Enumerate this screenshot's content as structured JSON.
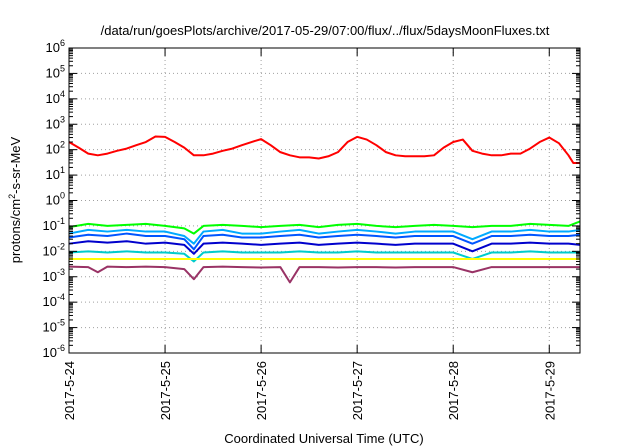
{
  "chart_data": {
    "type": "line",
    "title": "/data/run/goesPlots/archive/2017-05-29/07:00/flux/../flux/5daysMoonFluxes.txt",
    "xlabel": "Coordinated Universal Time (UTC)",
    "ylabel": "protons/cm²-s-sr-MeV",
    "ylabel_base": "protons/cm",
    "ylabel_sup": "2",
    "ylabel_rest": "-s-sr-MeV",
    "yscale": "log",
    "ylim_exp": [
      -6,
      6
    ],
    "ytick_base": "10",
    "ytick_exponents": [
      "-6",
      "-5",
      "-4",
      "-3",
      "-2",
      "-1",
      "0",
      "1",
      "2",
      "3",
      "4",
      "5",
      "6"
    ],
    "x_day_start": "2017-5-24",
    "xlim_days": [
      0,
      5.32
    ],
    "xtick_days": [
      0,
      1,
      2,
      3,
      4,
      5
    ],
    "xtick_labels": [
      "2017-5-24",
      "2017-5-25",
      "2017-5-26",
      "2017-5-27",
      "2017-5-28",
      "2017-5-29"
    ],
    "grid": true,
    "series": [
      {
        "color": "#ff0000",
        "values": [
          [
            0,
            200
          ],
          [
            0.1,
            120
          ],
          [
            0.2,
            70
          ],
          [
            0.3,
            60
          ],
          [
            0.4,
            70
          ],
          [
            0.5,
            90
          ],
          [
            0.6,
            110
          ],
          [
            0.7,
            150
          ],
          [
            0.8,
            200
          ],
          [
            0.9,
            330
          ],
          [
            1.0,
            320
          ],
          [
            1.1,
            200
          ],
          [
            1.2,
            120
          ],
          [
            1.3,
            60
          ],
          [
            1.4,
            60
          ],
          [
            1.5,
            70
          ],
          [
            1.6,
            90
          ],
          [
            1.7,
            110
          ],
          [
            1.8,
            150
          ],
          [
            1.9,
            200
          ],
          [
            2.0,
            260
          ],
          [
            2.1,
            150
          ],
          [
            2.2,
            80
          ],
          [
            2.3,
            60
          ],
          [
            2.4,
            50
          ],
          [
            2.5,
            50
          ],
          [
            2.6,
            45
          ],
          [
            2.7,
            55
          ],
          [
            2.8,
            80
          ],
          [
            2.9,
            200
          ],
          [
            3.0,
            320
          ],
          [
            3.1,
            250
          ],
          [
            3.2,
            150
          ],
          [
            3.3,
            80
          ],
          [
            3.4,
            60
          ],
          [
            3.5,
            55
          ],
          [
            3.6,
            55
          ],
          [
            3.7,
            55
          ],
          [
            3.8,
            60
          ],
          [
            3.9,
            120
          ],
          [
            4.0,
            200
          ],
          [
            4.1,
            250
          ],
          [
            4.2,
            90
          ],
          [
            4.3,
            70
          ],
          [
            4.4,
            60
          ],
          [
            4.5,
            60
          ],
          [
            4.6,
            70
          ],
          [
            4.7,
            70
          ],
          [
            4.8,
            110
          ],
          [
            4.9,
            200
          ],
          [
            5.0,
            300
          ],
          [
            5.1,
            180
          ],
          [
            5.2,
            60
          ],
          [
            5.25,
            30
          ],
          [
            5.32,
            30
          ]
        ]
      },
      {
        "color": "#00ff00",
        "values": [
          [
            0,
            0.09
          ],
          [
            0.2,
            0.12
          ],
          [
            0.4,
            0.1
          ],
          [
            0.6,
            0.11
          ],
          [
            0.8,
            0.12
          ],
          [
            1.0,
            0.1
          ],
          [
            1.2,
            0.08
          ],
          [
            1.3,
            0.05
          ],
          [
            1.4,
            0.1
          ],
          [
            1.6,
            0.11
          ],
          [
            1.8,
            0.1
          ],
          [
            2.0,
            0.09
          ],
          [
            2.2,
            0.1
          ],
          [
            2.4,
            0.11
          ],
          [
            2.6,
            0.09
          ],
          [
            2.8,
            0.11
          ],
          [
            3.0,
            0.12
          ],
          [
            3.2,
            0.1
          ],
          [
            3.4,
            0.09
          ],
          [
            3.6,
            0.1
          ],
          [
            3.8,
            0.11
          ],
          [
            4.0,
            0.1
          ],
          [
            4.2,
            0.09
          ],
          [
            4.4,
            0.1
          ],
          [
            4.6,
            0.1
          ],
          [
            4.8,
            0.12
          ],
          [
            5.0,
            0.11
          ],
          [
            5.2,
            0.1
          ],
          [
            5.32,
            0.15
          ]
        ]
      },
      {
        "color": "#00aaff",
        "values": [
          [
            0,
            0.05
          ],
          [
            0.2,
            0.07
          ],
          [
            0.4,
            0.06
          ],
          [
            0.6,
            0.07
          ],
          [
            0.8,
            0.06
          ],
          [
            1.0,
            0.06
          ],
          [
            1.2,
            0.04
          ],
          [
            1.3,
            0.02
          ],
          [
            1.4,
            0.06
          ],
          [
            1.6,
            0.07
          ],
          [
            1.8,
            0.05
          ],
          [
            2.0,
            0.05
          ],
          [
            2.2,
            0.06
          ],
          [
            2.4,
            0.07
          ],
          [
            2.6,
            0.05
          ],
          [
            2.8,
            0.06
          ],
          [
            3.0,
            0.07
          ],
          [
            3.2,
            0.06
          ],
          [
            3.4,
            0.05
          ],
          [
            3.6,
            0.06
          ],
          [
            3.8,
            0.06
          ],
          [
            4.0,
            0.06
          ],
          [
            4.2,
            0.03
          ],
          [
            4.4,
            0.06
          ],
          [
            4.6,
            0.06
          ],
          [
            4.8,
            0.07
          ],
          [
            5.0,
            0.06
          ],
          [
            5.2,
            0.06
          ],
          [
            5.32,
            0.07
          ]
        ]
      },
      {
        "color": "#0055ff",
        "values": [
          [
            0,
            0.035
          ],
          [
            0.2,
            0.045
          ],
          [
            0.4,
            0.04
          ],
          [
            0.6,
            0.05
          ],
          [
            0.8,
            0.04
          ],
          [
            1.0,
            0.04
          ],
          [
            1.2,
            0.03
          ],
          [
            1.3,
            0.012
          ],
          [
            1.4,
            0.04
          ],
          [
            1.6,
            0.045
          ],
          [
            1.8,
            0.035
          ],
          [
            2.0,
            0.035
          ],
          [
            2.2,
            0.04
          ],
          [
            2.4,
            0.045
          ],
          [
            2.6,
            0.035
          ],
          [
            2.8,
            0.04
          ],
          [
            3.0,
            0.045
          ],
          [
            3.2,
            0.04
          ],
          [
            3.4,
            0.035
          ],
          [
            3.6,
            0.04
          ],
          [
            3.8,
            0.04
          ],
          [
            4.0,
            0.04
          ],
          [
            4.2,
            0.02
          ],
          [
            4.4,
            0.04
          ],
          [
            4.6,
            0.04
          ],
          [
            4.8,
            0.045
          ],
          [
            5.0,
            0.04
          ],
          [
            5.2,
            0.04
          ],
          [
            5.32,
            0.045
          ]
        ]
      },
      {
        "color": "#0000cc",
        "values": [
          [
            0,
            0.02
          ],
          [
            0.2,
            0.025
          ],
          [
            0.4,
            0.022
          ],
          [
            0.6,
            0.025
          ],
          [
            0.8,
            0.02
          ],
          [
            1.0,
            0.022
          ],
          [
            1.2,
            0.018
          ],
          [
            1.3,
            0.008
          ],
          [
            1.4,
            0.02
          ],
          [
            1.6,
            0.022
          ],
          [
            1.8,
            0.02
          ],
          [
            2.0,
            0.018
          ],
          [
            2.2,
            0.02
          ],
          [
            2.4,
            0.022
          ],
          [
            2.6,
            0.018
          ],
          [
            2.8,
            0.02
          ],
          [
            3.0,
            0.022
          ],
          [
            3.2,
            0.02
          ],
          [
            3.4,
            0.018
          ],
          [
            3.6,
            0.02
          ],
          [
            3.8,
            0.02
          ],
          [
            4.0,
            0.02
          ],
          [
            4.2,
            0.01
          ],
          [
            4.4,
            0.02
          ],
          [
            4.6,
            0.02
          ],
          [
            4.8,
            0.022
          ],
          [
            5.0,
            0.02
          ],
          [
            5.2,
            0.02
          ],
          [
            5.32,
            0.018
          ]
        ]
      },
      {
        "color": "#00cccc",
        "values": [
          [
            0,
            0.009
          ],
          [
            0.2,
            0.01
          ],
          [
            0.4,
            0.009
          ],
          [
            0.6,
            0.01
          ],
          [
            0.8,
            0.009
          ],
          [
            1.0,
            0.009
          ],
          [
            1.2,
            0.008
          ],
          [
            1.3,
            0.004
          ],
          [
            1.4,
            0.009
          ],
          [
            1.6,
            0.01
          ],
          [
            1.8,
            0.009
          ],
          [
            2.0,
            0.009
          ],
          [
            2.2,
            0.009
          ],
          [
            2.4,
            0.01
          ],
          [
            2.6,
            0.009
          ],
          [
            2.8,
            0.009
          ],
          [
            3.0,
            0.01
          ],
          [
            3.2,
            0.009
          ],
          [
            3.4,
            0.009
          ],
          [
            3.6,
            0.009
          ],
          [
            3.8,
            0.009
          ],
          [
            4.0,
            0.009
          ],
          [
            4.2,
            0.005
          ],
          [
            4.4,
            0.009
          ],
          [
            4.6,
            0.009
          ],
          [
            4.8,
            0.01
          ],
          [
            5.0,
            0.009
          ],
          [
            5.2,
            0.009
          ],
          [
            5.32,
            0.009
          ]
        ]
      },
      {
        "color": "#ffff00",
        "values": [
          [
            0,
            0.005
          ],
          [
            0.5,
            0.005
          ],
          [
            1.0,
            0.005
          ],
          [
            1.5,
            0.005
          ],
          [
            2.0,
            0.005
          ],
          [
            2.5,
            0.005
          ],
          [
            3.0,
            0.005
          ],
          [
            3.5,
            0.005
          ],
          [
            4.0,
            0.005
          ],
          [
            4.5,
            0.005
          ],
          [
            5.0,
            0.005
          ],
          [
            5.32,
            0.005
          ]
        ]
      },
      {
        "color": "#993366",
        "values": [
          [
            0,
            0.0025
          ],
          [
            0.2,
            0.0024
          ],
          [
            0.3,
            0.0015
          ],
          [
            0.4,
            0.0025
          ],
          [
            0.6,
            0.0024
          ],
          [
            0.8,
            0.0025
          ],
          [
            1.0,
            0.0024
          ],
          [
            1.2,
            0.002
          ],
          [
            1.3,
            0.0008
          ],
          [
            1.4,
            0.0024
          ],
          [
            1.6,
            0.0025
          ],
          [
            1.8,
            0.0024
          ],
          [
            2.0,
            0.0023
          ],
          [
            2.2,
            0.0024
          ],
          [
            2.3,
            0.0006
          ],
          [
            2.4,
            0.0024
          ],
          [
            2.6,
            0.0024
          ],
          [
            2.8,
            0.0023
          ],
          [
            3.0,
            0.0024
          ],
          [
            3.2,
            0.0024
          ],
          [
            3.4,
            0.0023
          ],
          [
            3.6,
            0.0024
          ],
          [
            3.8,
            0.0024
          ],
          [
            4.0,
            0.0024
          ],
          [
            4.2,
            0.0015
          ],
          [
            4.4,
            0.0024
          ],
          [
            4.6,
            0.0024
          ],
          [
            4.8,
            0.0024
          ],
          [
            5.0,
            0.0024
          ],
          [
            5.2,
            0.0024
          ],
          [
            5.32,
            0.0024
          ]
        ]
      }
    ]
  }
}
